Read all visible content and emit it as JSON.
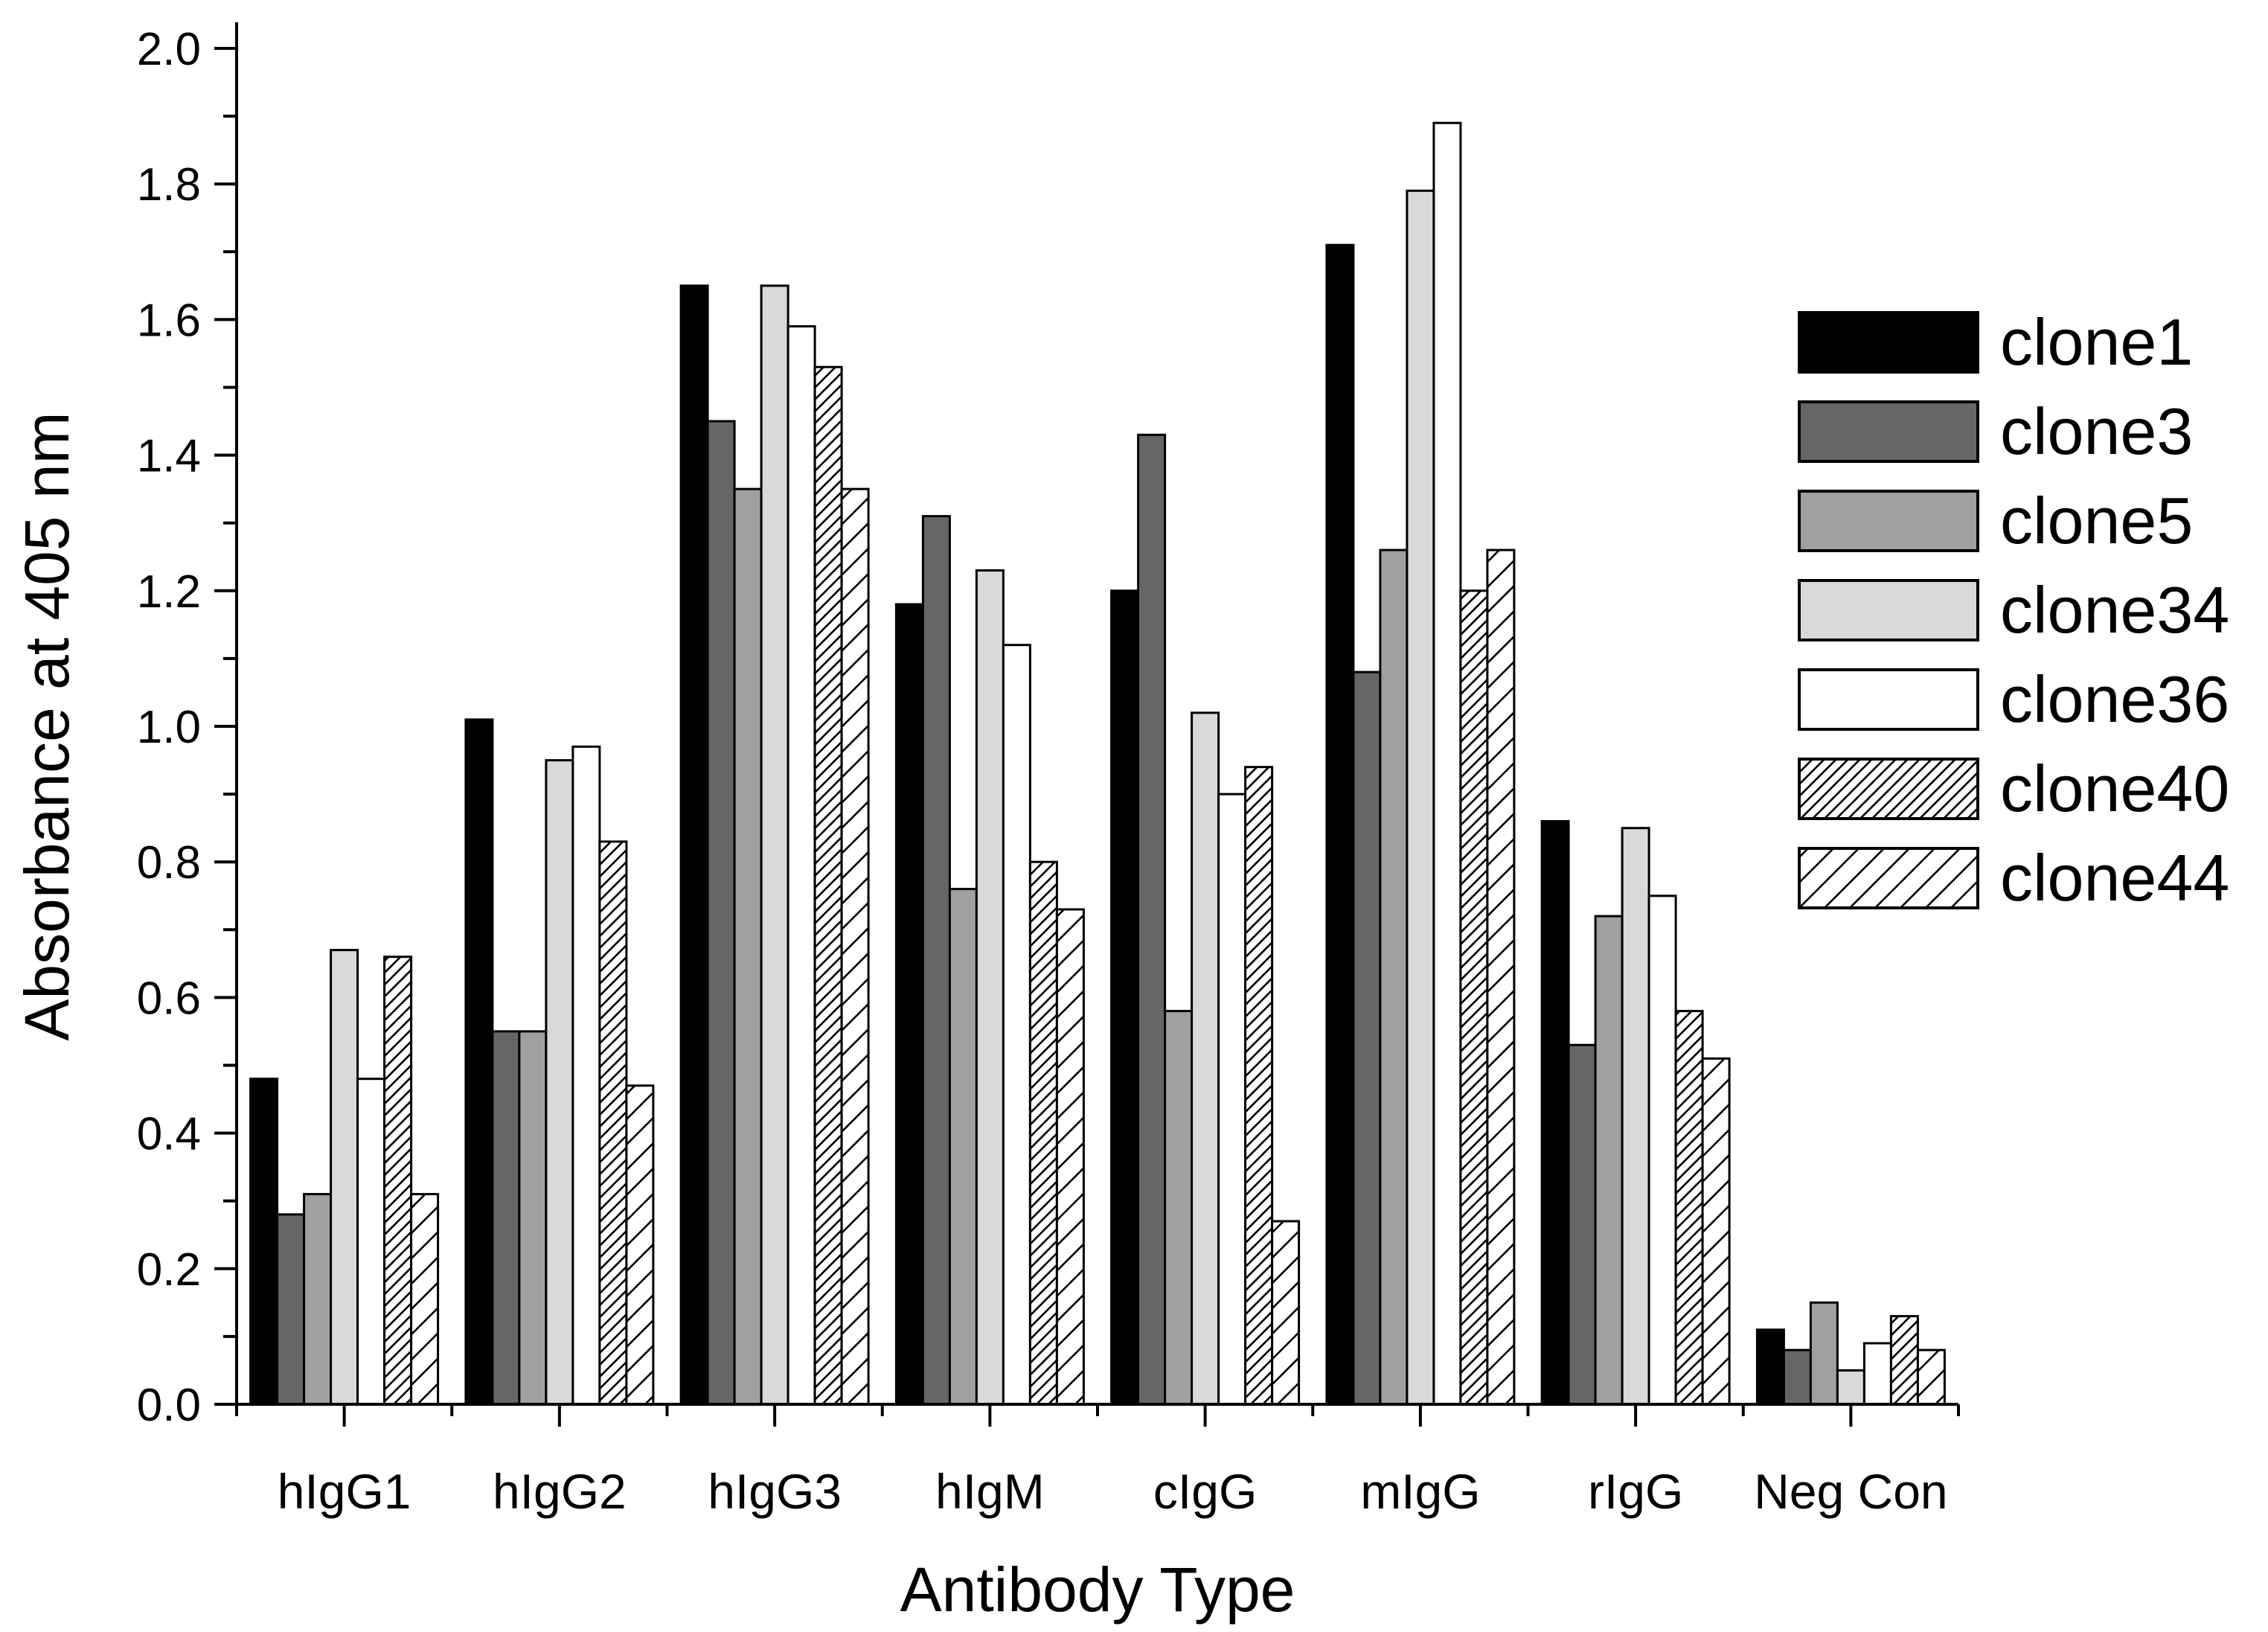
{
  "chart_data": {
    "type": "bar",
    "title": "",
    "xlabel": "Antibody Type",
    "ylabel": "Absorbance at 405 nm",
    "ylim": [
      0.0,
      2.0
    ],
    "yticks": [
      "0.0",
      "0.2",
      "0.4",
      "0.6",
      "0.8",
      "1.0",
      "1.2",
      "1.4",
      "1.6",
      "1.8",
      "2.0"
    ],
    "categories": [
      "hIgG1",
      "hIgG2",
      "hIgG3",
      "hIgM",
      "cIgG",
      "mIgG",
      "rIgG",
      "Neg Con"
    ],
    "grid": false,
    "legend_position": "right",
    "series": [
      {
        "name": "clone1",
        "fill": "#000000",
        "pattern": "solid",
        "values": [
          0.48,
          1.01,
          1.65,
          1.18,
          1.2,
          1.71,
          0.86,
          0.11
        ]
      },
      {
        "name": "clone3",
        "fill": "#666666",
        "pattern": "solid",
        "values": [
          0.28,
          0.55,
          1.45,
          1.31,
          1.43,
          1.08,
          0.53,
          0.08
        ]
      },
      {
        "name": "clone5",
        "fill": "#a0a0a0",
        "pattern": "solid",
        "values": [
          0.31,
          0.55,
          1.35,
          0.76,
          0.58,
          1.26,
          0.72,
          0.15
        ]
      },
      {
        "name": "clone34",
        "fill": "#d9d9d9",
        "pattern": "solid",
        "values": [
          0.67,
          0.95,
          1.65,
          1.23,
          1.02,
          1.79,
          0.85,
          0.05
        ]
      },
      {
        "name": "clone36",
        "fill": "#ffffff",
        "pattern": "solid",
        "values": [
          0.48,
          0.97,
          1.59,
          1.12,
          0.9,
          1.89,
          0.75,
          0.09
        ]
      },
      {
        "name": "clone40",
        "fill": "#ffffff",
        "pattern": "dense-hatch",
        "values": [
          0.66,
          0.83,
          1.53,
          0.8,
          0.94,
          1.2,
          0.58,
          0.13
        ]
      },
      {
        "name": "clone44",
        "fill": "#ffffff",
        "pattern": "sparse-hatch",
        "values": [
          0.31,
          0.47,
          1.35,
          0.73,
          0.27,
          1.26,
          0.51,
          0.08
        ]
      }
    ]
  }
}
